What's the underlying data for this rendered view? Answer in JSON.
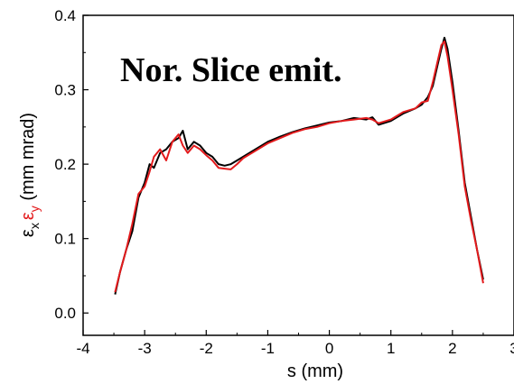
{
  "chart_data": {
    "type": "line",
    "title": "",
    "annotation": "Nor. Slice emit.",
    "xlabel": "s (mm)",
    "ylabel": {
      "prefix_x": "ε",
      "sub_x": "x",
      "prefix_y": "ε",
      "sub_y": "y",
      "suffix": " (mm mrad)"
    },
    "xlim": [
      -4,
      3
    ],
    "ylim": [
      -0.03,
      0.4
    ],
    "x_ticks": [
      -4,
      -3,
      -2,
      -1,
      0,
      1,
      2,
      3
    ],
    "x_tick_labels": [
      "-4",
      "-3",
      "-2",
      "-1",
      "0",
      "1",
      "2",
      "3"
    ],
    "y_ticks": [
      0.0,
      0.1,
      0.2,
      0.3,
      0.4
    ],
    "y_tick_labels": [
      "0.0",
      "0.1",
      "0.2",
      "0.3",
      "0.4"
    ],
    "grid": false,
    "legend": "none",
    "series": [
      {
        "color": "#000000",
        "points": [
          [
            -3.48,
            0.025
          ],
          [
            -3.4,
            0.055
          ],
          [
            -3.3,
            0.085
          ],
          [
            -3.2,
            0.11
          ],
          [
            -3.1,
            0.155
          ],
          [
            -3.0,
            0.175
          ],
          [
            -2.92,
            0.2
          ],
          [
            -2.85,
            0.195
          ],
          [
            -2.75,
            0.215
          ],
          [
            -2.65,
            0.22
          ],
          [
            -2.55,
            0.23
          ],
          [
            -2.45,
            0.235
          ],
          [
            -2.38,
            0.245
          ],
          [
            -2.3,
            0.22
          ],
          [
            -2.2,
            0.23
          ],
          [
            -2.1,
            0.225
          ],
          [
            -2.0,
            0.215
          ],
          [
            -1.9,
            0.21
          ],
          [
            -1.8,
            0.2
          ],
          [
            -1.7,
            0.198
          ],
          [
            -1.6,
            0.2
          ],
          [
            -1.5,
            0.205
          ],
          [
            -1.4,
            0.21
          ],
          [
            -1.2,
            0.22
          ],
          [
            -1.0,
            0.23
          ],
          [
            -0.8,
            0.237
          ],
          [
            -0.6,
            0.243
          ],
          [
            -0.4,
            0.248
          ],
          [
            -0.2,
            0.252
          ],
          [
            0.0,
            0.256
          ],
          [
            0.2,
            0.258
          ],
          [
            0.4,
            0.262
          ],
          [
            0.6,
            0.26
          ],
          [
            0.7,
            0.263
          ],
          [
            0.8,
            0.253
          ],
          [
            1.0,
            0.258
          ],
          [
            1.2,
            0.268
          ],
          [
            1.4,
            0.275
          ],
          [
            1.5,
            0.28
          ],
          [
            1.6,
            0.29
          ],
          [
            1.68,
            0.305
          ],
          [
            1.75,
            0.33
          ],
          [
            1.82,
            0.355
          ],
          [
            1.87,
            0.37
          ],
          [
            1.92,
            0.355
          ],
          [
            2.0,
            0.31
          ],
          [
            2.1,
            0.245
          ],
          [
            2.2,
            0.175
          ],
          [
            2.3,
            0.13
          ],
          [
            2.4,
            0.085
          ],
          [
            2.5,
            0.045
          ]
        ]
      },
      {
        "color": "#e31a1c",
        "points": [
          [
            -3.48,
            0.028
          ],
          [
            -3.4,
            0.055
          ],
          [
            -3.3,
            0.085
          ],
          [
            -3.2,
            0.12
          ],
          [
            -3.1,
            0.16
          ],
          [
            -3.0,
            0.17
          ],
          [
            -2.92,
            0.19
          ],
          [
            -2.85,
            0.21
          ],
          [
            -2.75,
            0.22
          ],
          [
            -2.65,
            0.205
          ],
          [
            -2.55,
            0.23
          ],
          [
            -2.45,
            0.24
          ],
          [
            -2.38,
            0.225
          ],
          [
            -2.3,
            0.215
          ],
          [
            -2.2,
            0.225
          ],
          [
            -2.1,
            0.22
          ],
          [
            -2.0,
            0.212
          ],
          [
            -1.9,
            0.205
          ],
          [
            -1.8,
            0.195
          ],
          [
            -1.7,
            0.194
          ],
          [
            -1.6,
            0.193
          ],
          [
            -1.5,
            0.2
          ],
          [
            -1.4,
            0.208
          ],
          [
            -1.2,
            0.218
          ],
          [
            -1.0,
            0.228
          ],
          [
            -0.8,
            0.235
          ],
          [
            -0.6,
            0.242
          ],
          [
            -0.4,
            0.247
          ],
          [
            -0.2,
            0.25
          ],
          [
            0.0,
            0.255
          ],
          [
            0.2,
            0.258
          ],
          [
            0.4,
            0.26
          ],
          [
            0.6,
            0.262
          ],
          [
            0.7,
            0.26
          ],
          [
            0.8,
            0.255
          ],
          [
            1.0,
            0.26
          ],
          [
            1.2,
            0.27
          ],
          [
            1.4,
            0.275
          ],
          [
            1.5,
            0.283
          ],
          [
            1.6,
            0.285
          ],
          [
            1.68,
            0.31
          ],
          [
            1.75,
            0.335
          ],
          [
            1.82,
            0.36
          ],
          [
            1.87,
            0.365
          ],
          [
            1.92,
            0.345
          ],
          [
            2.0,
            0.3
          ],
          [
            2.1,
            0.24
          ],
          [
            2.2,
            0.17
          ],
          [
            2.3,
            0.125
          ],
          [
            2.4,
            0.085
          ],
          [
            2.5,
            0.04
          ]
        ]
      }
    ]
  }
}
